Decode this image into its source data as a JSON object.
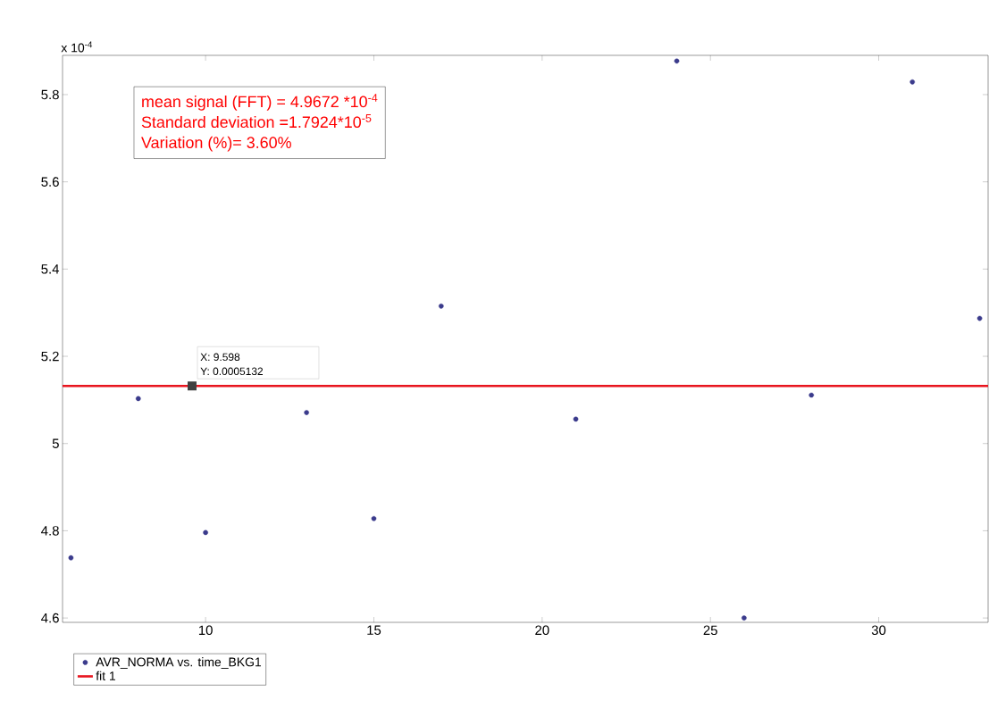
{
  "chart_data": {
    "type": "scatter",
    "x": [
      6,
      8,
      10,
      13,
      15,
      17,
      21,
      24,
      26,
      28,
      31,
      33
    ],
    "series": [
      {
        "name": "AVR_NORMA vs. time_BKG1",
        "color": "#3b3b8c",
        "marker": "circle",
        "values": [
          4.738,
          5.103,
          4.796,
          5.071,
          4.828,
          5.315,
          5.056,
          5.877,
          4.6,
          5.111,
          5.829,
          5.287
        ]
      },
      {
        "name": "fit 1",
        "type": "line",
        "color": "#e8141e",
        "marker": "none",
        "line_style": "solid",
        "x": [
          5.75,
          33.25
        ],
        "values": [
          5.132,
          5.132
        ]
      }
    ],
    "xlim": [
      5.75,
      33.25
    ],
    "ylim": [
      4.59,
      5.89
    ],
    "xticks": [
      10,
      15,
      20,
      25,
      30
    ],
    "yticks": [
      4.6,
      4.8,
      5,
      5.2,
      5.4,
      5.6,
      5.8
    ],
    "grid": false,
    "legend": "bottom left",
    "annotations": [
      "x 10$^{-4}$",
      "mean signal (FFT) = 4.9672 *10$^{-4}$",
      "Standard deviation =1.7924*10$^{-5}$",
      "Variation (%)= 3.60%",
      {
        "text": "X: 9.598",
        "x": 9.598,
        "y": 5.132
      },
      {
        "text": "Y: 0.0005132",
        "x": 9.598,
        "y": 5.132
      }
    ]
  }
}
